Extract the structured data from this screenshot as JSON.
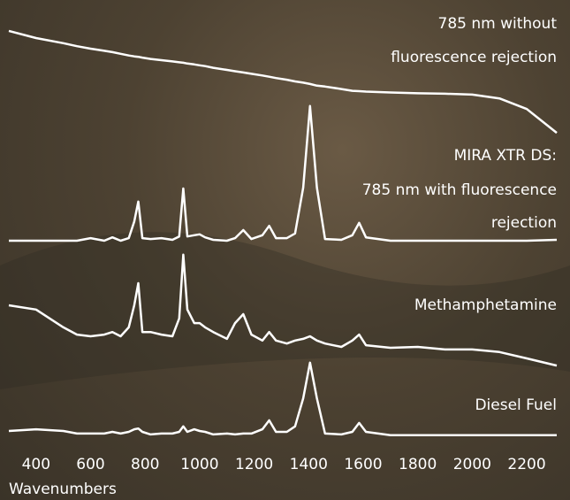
{
  "chart_data": {
    "type": "line",
    "x": [
      300,
      400,
      500,
      550,
      600,
      650,
      680,
      710,
      740,
      760,
      775,
      790,
      820,
      860,
      900,
      925,
      940,
      955,
      980,
      1000,
      1020,
      1050,
      1100,
      1130,
      1160,
      1190,
      1230,
      1255,
      1280,
      1320,
      1350,
      1380,
      1405,
      1430,
      1460,
      1520,
      1560,
      1585,
      1610,
      1700,
      1800,
      1900,
      2000,
      2100,
      2200,
      2310
    ],
    "series": [
      {
        "name": [
          "785 nm without",
          "fluorescence rejection"
        ],
        "color": "#ffffff",
        "values": [
          96.9,
          95.2,
          94,
          93.3,
          92.7,
          92.2,
          91.9,
          91.5,
          91.1,
          90.9,
          90.8,
          90.6,
          90.3,
          90.0,
          89.7,
          89.5,
          89.4,
          89.2,
          89.0,
          88.8,
          88.6,
          88.2,
          87.7,
          87.4,
          87.1,
          86.8,
          86.4,
          86.1,
          85.8,
          85.4,
          85.0,
          84.7,
          84.4,
          84.0,
          83.8,
          83.2,
          82.8,
          82.7,
          82.6,
          82.4,
          82.2,
          82.1,
          81.9,
          81.0,
          78.5,
          72.9
        ]
      },
      {
        "name": [
          "MIRA XTR DS:",
          "785 nm with fluorescence",
          "rejection"
        ],
        "color": "#ffffff",
        "values": [
          47.5,
          47.5,
          47.5,
          47.5,
          48.1,
          47.5,
          48.3,
          47.5,
          48.1,
          52,
          56.7,
          48.1,
          47.9,
          48.1,
          47.7,
          48.5,
          59.8,
          48.5,
          48.8,
          49.0,
          48.3,
          47.7,
          47.5,
          48.1,
          50.0,
          47.9,
          48.8,
          51.0,
          48.1,
          48.1,
          49.2,
          60,
          79.2,
          60,
          47.9,
          47.7,
          48.8,
          51.7,
          48.3,
          47.5,
          47.5,
          47.5,
          47.5,
          47.5,
          47.5,
          47.7
        ]
      },
      {
        "name": [
          "Methamphetamine"
        ],
        "color": "#ffffff",
        "values": [
          32.3,
          31.3,
          27.1,
          25.4,
          25,
          25.4,
          26,
          25,
          27.1,
          32.3,
          37.5,
          26,
          26,
          25.4,
          25,
          29.2,
          44.2,
          31.3,
          28.1,
          28.1,
          27.1,
          26,
          24.4,
          28.1,
          30.2,
          25.4,
          24,
          26,
          24,
          23.3,
          24,
          24.4,
          25,
          24,
          23.3,
          22.5,
          24,
          25.4,
          22.9,
          22.3,
          22.5,
          21.9,
          21.9,
          21.3,
          19.8,
          18.1
        ]
      },
      {
        "name": [
          "Diesel Fuel"
        ],
        "color": "#ffffff",
        "values": [
          2.7,
          3.1,
          2.7,
          2.1,
          2.1,
          2.1,
          2.5,
          2.1,
          2.5,
          3.1,
          3.3,
          2.5,
          1.9,
          2.1,
          2.1,
          2.5,
          3.8,
          2.5,
          3.1,
          2.7,
          2.5,
          1.9,
          2.1,
          1.9,
          2.1,
          2.1,
          3.1,
          5.2,
          2.5,
          2.5,
          3.8,
          10.4,
          18.8,
          10.4,
          2.1,
          1.9,
          2.5,
          4.6,
          2.5,
          1.7,
          1.7,
          1.7,
          1.7,
          1.7,
          1.7,
          1.7
        ]
      }
    ],
    "x_label": "Wavenumbers",
    "xlim": [
      300,
      2310
    ],
    "ylim": [
      0,
      100
    ],
    "xticks": [
      400,
      600,
      800,
      1000,
      1200,
      1400,
      1600,
      1800,
      2000,
      2200
    ]
  }
}
